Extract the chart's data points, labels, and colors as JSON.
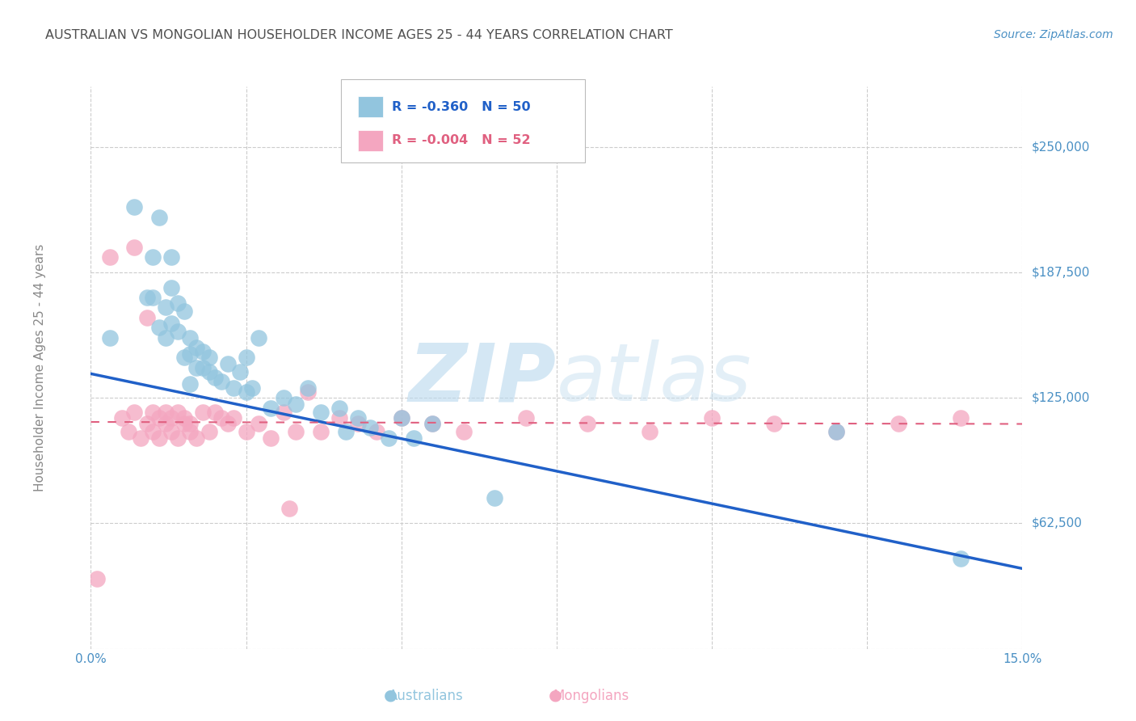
{
  "title": "AUSTRALIAN VS MONGOLIAN HOUSEHOLDER INCOME AGES 25 - 44 YEARS CORRELATION CHART",
  "source": "Source: ZipAtlas.com",
  "ylabel": "Householder Income Ages 25 - 44 years",
  "xlim": [
    0.0,
    0.15
  ],
  "ylim": [
    0,
    280000
  ],
  "yticks": [
    62500,
    125000,
    187500,
    250000
  ],
  "ytick_labels": [
    "$62,500",
    "$125,000",
    "$187,500",
    "$250,000"
  ],
  "xticks": [
    0.0,
    0.025,
    0.05,
    0.075,
    0.1,
    0.125,
    0.15
  ],
  "xtick_labels": [
    "0.0%",
    "",
    "",
    "",
    "",
    "",
    "15.0%"
  ],
  "background_color": "#ffffff",
  "grid_color": "#cccccc",
  "legend_r_blue": "-0.360",
  "legend_n_blue": "50",
  "legend_r_pink": "-0.004",
  "legend_n_pink": "52",
  "aus_color": "#92C5DE",
  "mong_color": "#F4A6C0",
  "aus_line_color": "#2060C8",
  "mong_line_color": "#E06080",
  "title_color": "#505050",
  "tick_label_color": "#4A90C4",
  "australians_x": [
    0.003,
    0.007,
    0.009,
    0.01,
    0.01,
    0.011,
    0.011,
    0.012,
    0.012,
    0.013,
    0.013,
    0.013,
    0.014,
    0.014,
    0.015,
    0.015,
    0.016,
    0.016,
    0.016,
    0.017,
    0.017,
    0.018,
    0.018,
    0.019,
    0.019,
    0.02,
    0.021,
    0.022,
    0.023,
    0.024,
    0.025,
    0.025,
    0.026,
    0.027,
    0.029,
    0.031,
    0.033,
    0.035,
    0.037,
    0.04,
    0.041,
    0.043,
    0.045,
    0.048,
    0.05,
    0.052,
    0.055,
    0.065,
    0.12,
    0.14
  ],
  "australians_y": [
    155000,
    220000,
    175000,
    195000,
    175000,
    160000,
    215000,
    155000,
    170000,
    180000,
    162000,
    195000,
    158000,
    172000,
    145000,
    168000,
    147000,
    155000,
    132000,
    140000,
    150000,
    140000,
    148000,
    138000,
    145000,
    135000,
    133000,
    142000,
    130000,
    138000,
    128000,
    145000,
    130000,
    155000,
    120000,
    125000,
    122000,
    130000,
    118000,
    120000,
    108000,
    115000,
    110000,
    105000,
    115000,
    105000,
    112000,
    75000,
    108000,
    45000
  ],
  "mongolians_x": [
    0.001,
    0.003,
    0.005,
    0.006,
    0.007,
    0.008,
    0.009,
    0.01,
    0.01,
    0.011,
    0.011,
    0.012,
    0.012,
    0.013,
    0.013,
    0.014,
    0.014,
    0.015,
    0.015,
    0.016,
    0.016,
    0.017,
    0.018,
    0.019,
    0.02,
    0.021,
    0.022,
    0.023,
    0.025,
    0.027,
    0.029,
    0.031,
    0.033,
    0.035,
    0.037,
    0.04,
    0.043,
    0.046,
    0.05,
    0.055,
    0.06,
    0.07,
    0.08,
    0.09,
    0.1,
    0.11,
    0.12,
    0.13,
    0.14,
    0.007,
    0.009,
    0.032
  ],
  "mongolians_y": [
    35000,
    195000,
    115000,
    108000,
    118000,
    105000,
    112000,
    118000,
    108000,
    115000,
    105000,
    112000,
    118000,
    108000,
    115000,
    105000,
    118000,
    112000,
    115000,
    108000,
    112000,
    105000,
    118000,
    108000,
    118000,
    115000,
    112000,
    115000,
    108000,
    112000,
    105000,
    118000,
    108000,
    128000,
    108000,
    115000,
    112000,
    108000,
    115000,
    112000,
    108000,
    115000,
    112000,
    108000,
    115000,
    112000,
    108000,
    112000,
    115000,
    200000,
    165000,
    70000
  ],
  "aus_trend_x0": 0.0,
  "aus_trend_y0": 137000,
  "aus_trend_x1": 0.15,
  "aus_trend_y1": 40000,
  "mong_trend_x0": 0.0,
  "mong_trend_y0": 113000,
  "mong_trend_x1": 0.15,
  "mong_trend_y1": 112000
}
